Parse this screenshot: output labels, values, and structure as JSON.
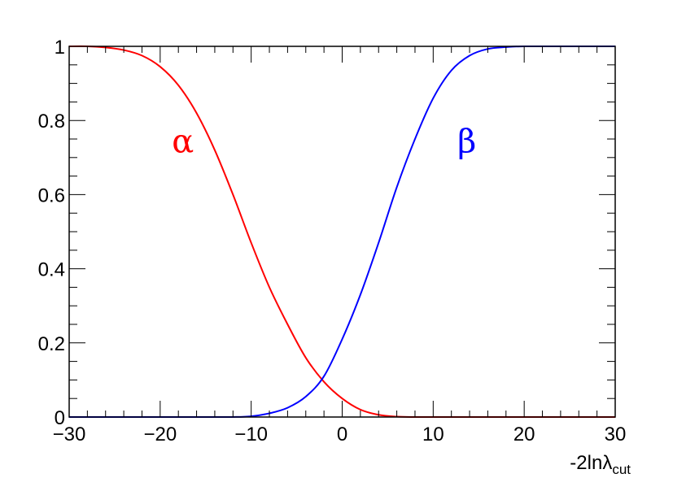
{
  "chart_data": {
    "type": "line",
    "title": "",
    "xlabel": {
      "main": "-2ln",
      "symbol": "λ",
      "subscript": "cut"
    },
    "ylabel": "",
    "xlim": [
      -30,
      30
    ],
    "ylim": [
      0,
      1
    ],
    "x_ticks": [
      -30,
      -20,
      -10,
      0,
      10,
      20,
      30
    ],
    "x_tick_labels": [
      "−30",
      "−20",
      "−10",
      "0",
      "10",
      "20",
      "30"
    ],
    "y_ticks": [
      0,
      0.2,
      0.4,
      0.6,
      0.8,
      1
    ],
    "y_tick_labels": [
      "0",
      "0.2",
      "0.4",
      "0.6",
      "0.8",
      "1"
    ],
    "grid": false,
    "annotations": [
      {
        "text": "α",
        "x": -17.5,
        "y": 0.745,
        "color": "#ff0000"
      },
      {
        "text": "β",
        "x": 13.7,
        "y": 0.745,
        "color": "#0000ff"
      }
    ],
    "series": [
      {
        "color": "#ff0000",
        "x": [
          -30,
          -28,
          -26,
          -24,
          -22,
          -20,
          -18,
          -16,
          -14,
          -12,
          -10,
          -8,
          -6,
          -4,
          -2,
          0,
          2,
          4,
          6,
          8,
          10,
          15,
          20,
          25,
          30
        ],
        "y": [
          1.0,
          1.0,
          0.997,
          0.99,
          0.975,
          0.945,
          0.895,
          0.82,
          0.72,
          0.6,
          0.47,
          0.35,
          0.25,
          0.16,
          0.095,
          0.05,
          0.02,
          0.006,
          0.001,
          0,
          0,
          0,
          0,
          0,
          0
        ]
      },
      {
        "color": "#0000ff",
        "x": [
          -30,
          -20,
          -14,
          -12,
          -10,
          -8,
          -6,
          -4,
          -2,
          0,
          2,
          4,
          6,
          8,
          10,
          12,
          14,
          16,
          18,
          20,
          25,
          30
        ],
        "y": [
          0,
          0,
          0,
          0,
          0.002,
          0.01,
          0.025,
          0.055,
          0.11,
          0.21,
          0.33,
          0.47,
          0.62,
          0.75,
          0.86,
          0.935,
          0.975,
          0.993,
          0.998,
          1.0,
          1.0,
          1.0
        ]
      }
    ]
  }
}
